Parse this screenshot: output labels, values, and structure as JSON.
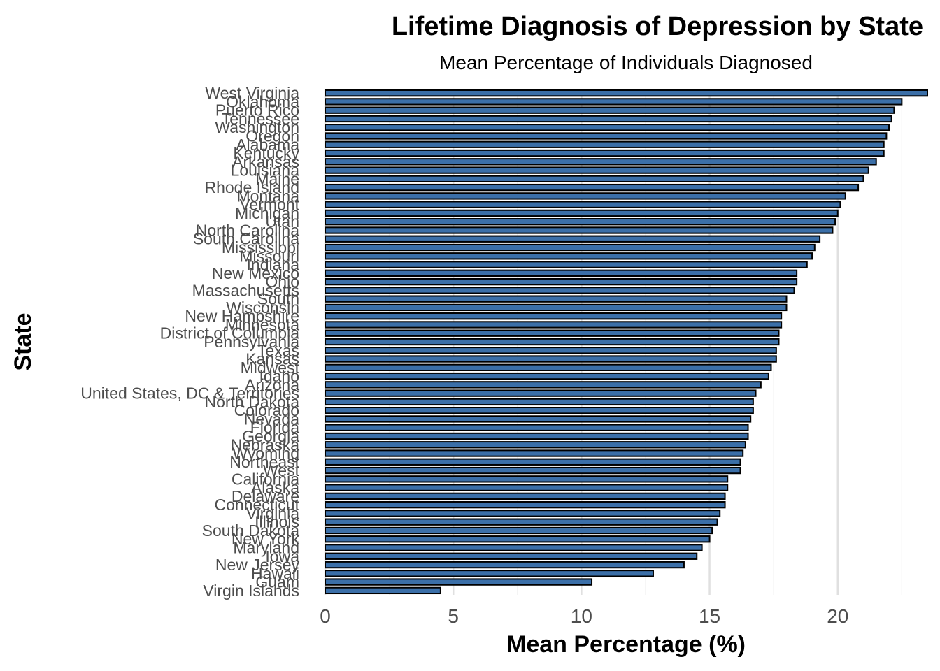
{
  "chart_data": {
    "type": "bar",
    "orientation": "horizontal",
    "title": "Lifetime Diagnosis of Depression by State",
    "subtitle": "Mean Percentage of Individuals Diagnosed",
    "xlabel": "Mean Percentage (%)",
    "ylabel": "State",
    "xlim": [
      0,
      23.5
    ],
    "xticks": [
      0,
      5,
      10,
      15,
      20
    ],
    "grid": "vertical",
    "legend": "none",
    "bar_color": "#3b6fa8",
    "bar_outline": "#000000",
    "categories": [
      "West Virginia",
      "Oklahoma",
      "Puerto Rico",
      "Tennessee",
      "Washington",
      "Oregon",
      "Alabama",
      "Kentucky",
      "Arkansas",
      "Louisiana",
      "Maine",
      "Rhode Island",
      "Montana",
      "Vermont",
      "Michigan",
      "Utah",
      "North Carolina",
      "South Carolina",
      "Mississippi",
      "Missouri",
      "Indiana",
      "New Mexico",
      "Ohio",
      "Massachusetts",
      "South",
      "Wisconsin",
      "New Hampshire",
      "Minnesota",
      "District of Columbia",
      "Pennsylvania",
      "Texas",
      "Kansas",
      "Midwest",
      "Idaho",
      "Arizona",
      "United States, DC & Territories",
      "North Dakota",
      "Colorado",
      "Nevada",
      "Florida",
      "Georgia",
      "Nebraska",
      "Wyoming",
      "Northeast",
      "West",
      "California",
      "Alaska",
      "Delaware",
      "Connecticut",
      "Virginia",
      "Illinois",
      "South Dakota",
      "New York",
      "Maryland",
      "Iowa",
      "New Jersey",
      "Hawaii",
      "Guam",
      "Virgin Islands"
    ],
    "values": [
      23.5,
      22.5,
      22.2,
      22.1,
      22.0,
      21.9,
      21.8,
      21.8,
      21.5,
      21.2,
      21.0,
      20.8,
      20.3,
      20.1,
      20.0,
      19.9,
      19.8,
      19.3,
      19.1,
      19.0,
      18.8,
      18.4,
      18.4,
      18.3,
      18.0,
      18.0,
      17.8,
      17.8,
      17.7,
      17.7,
      17.6,
      17.6,
      17.4,
      17.3,
      17.0,
      16.8,
      16.7,
      16.7,
      16.6,
      16.5,
      16.5,
      16.4,
      16.3,
      16.2,
      16.2,
      15.7,
      15.7,
      15.6,
      15.6,
      15.4,
      15.3,
      15.1,
      15.0,
      14.7,
      14.5,
      14.0,
      12.8,
      10.4,
      4.5
    ]
  }
}
